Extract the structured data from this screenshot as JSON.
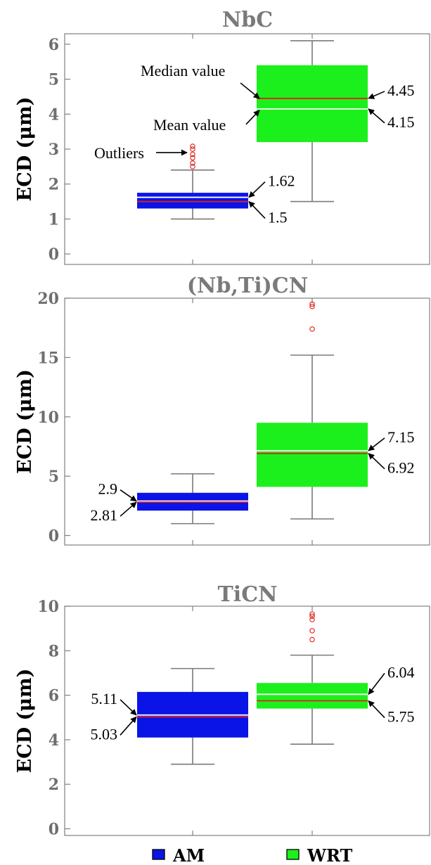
{
  "chart_data": [
    {
      "type": "box",
      "title": "NbC",
      "ylabel": "ECD (μm)",
      "ylim": [
        -0.3,
        6.3
      ],
      "yticks": [
        "0",
        "1",
        "2",
        "3",
        "4",
        "5",
        "6"
      ],
      "series": [
        {
          "name": "AM",
          "color": "#0b14e6",
          "whisker_low": 1.0,
          "q1": 1.3,
          "median": 1.5,
          "mean": 1.62,
          "q3": 1.75,
          "whisker_high": 2.4,
          "outliers": [
            2.5,
            2.6,
            2.75,
            2.85,
            3.0,
            3.08
          ]
        },
        {
          "name": "WRT",
          "color": "#1cf01c",
          "whisker_low": 1.5,
          "q1": 3.2,
          "median": 4.45,
          "mean": 4.15,
          "q3": 5.4,
          "whisker_high": 6.1,
          "outliers": []
        }
      ],
      "annotations": [
        {
          "id": "nbc-am-mean",
          "text": "1.62",
          "value": 1.62
        },
        {
          "id": "nbc-am-median",
          "text": "1.5",
          "value": 1.5
        },
        {
          "id": "nbc-wrt-median",
          "text": "4.45",
          "value": 4.45
        },
        {
          "id": "nbc-wrt-mean",
          "text": "4.15",
          "value": 4.15
        }
      ],
      "callouts": [
        {
          "id": "callout-median",
          "text": "Median value"
        },
        {
          "id": "callout-mean",
          "text": "Mean value"
        },
        {
          "id": "callout-outliers",
          "text": "Outliers"
        }
      ]
    },
    {
      "type": "box",
      "title": "(Nb,Ti)CN",
      "ylabel": "ECD (μm)",
      "ylim": [
        -0.8,
        20
      ],
      "yticks": [
        "0",
        "5",
        "10",
        "15",
        "20"
      ],
      "series": [
        {
          "name": "AM",
          "color": "#0b14e6",
          "whisker_low": 1.0,
          "q1": 2.1,
          "median": 2.81,
          "mean": 2.9,
          "q3": 3.6,
          "whisker_high": 5.2,
          "outliers": []
        },
        {
          "name": "WRT",
          "color": "#1cf01c",
          "whisker_low": 1.4,
          "q1": 4.1,
          "median": 6.92,
          "mean": 7.15,
          "q3": 9.5,
          "whisker_high": 15.2,
          "outliers": [
            17.4,
            19.3,
            19.5
          ]
        }
      ],
      "annotations": [
        {
          "id": "nbti-am-mean",
          "text": "2.9",
          "value": 2.9
        },
        {
          "id": "nbti-am-median",
          "text": "2.81",
          "value": 2.81
        },
        {
          "id": "nbti-wrt-mean",
          "text": "7.15",
          "value": 7.15
        },
        {
          "id": "nbti-wrt-median",
          "text": "6.92",
          "value": 6.92
        }
      ]
    },
    {
      "type": "box",
      "title": "TiCN",
      "ylabel": "ECD (μm)",
      "ylim": [
        -0.3,
        10
      ],
      "yticks": [
        "0",
        "2",
        "4",
        "6",
        "8",
        "10"
      ],
      "series": [
        {
          "name": "AM",
          "color": "#0b14e6",
          "whisker_low": 2.9,
          "q1": 4.1,
          "median": 5.03,
          "mean": 5.11,
          "q3": 6.15,
          "whisker_high": 7.2,
          "outliers": []
        },
        {
          "name": "WRT",
          "color": "#1cf01c",
          "whisker_low": 3.8,
          "q1": 5.4,
          "median": 5.75,
          "mean": 6.04,
          "q3": 6.55,
          "whisker_high": 7.8,
          "outliers": [
            8.5,
            8.9,
            9.4,
            9.55,
            9.65
          ]
        }
      ],
      "annotations": [
        {
          "id": "ticn-am-mean",
          "text": "5.11",
          "value": 5.11
        },
        {
          "id": "ticn-am-median",
          "text": "5.03",
          "value": 5.03
        },
        {
          "id": "ticn-wrt-mean",
          "text": "6.04",
          "value": 6.04
        },
        {
          "id": "ticn-wrt-median",
          "text": "5.75",
          "value": 5.75
        }
      ]
    }
  ],
  "legend": [
    {
      "label": "AM",
      "color": "#0b14e6"
    },
    {
      "label": "WRT",
      "color": "#1cf01c"
    }
  ],
  "colors": {
    "axis": "#808080",
    "whisker": "#7a7a7a",
    "median_line": "#e0201a",
    "mean_line": "#ffffff",
    "outlier": "#e0201a"
  }
}
